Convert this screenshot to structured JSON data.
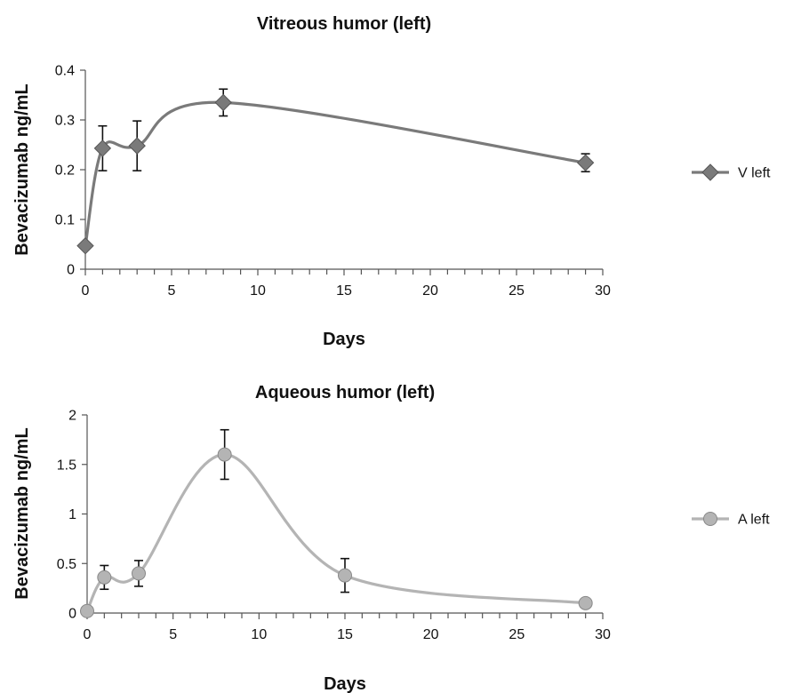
{
  "chart_data": [
    {
      "type": "line",
      "title": "Vitreous humor (left)",
      "xlabel": "Days",
      "ylabel": "Bevacizumab ng/mL",
      "xlim": [
        0,
        30
      ],
      "ylim": [
        0,
        0.4
      ],
      "xticks": [
        0,
        5,
        10,
        15,
        20,
        25,
        30
      ],
      "xtick_labels": [
        "0",
        "5",
        "10",
        "15",
        "20",
        "25",
        "30"
      ],
      "yticks": [
        0,
        0.1,
        0.2,
        0.3,
        0.4
      ],
      "ytick_labels": [
        "0",
        "0.1",
        "0.2",
        "0.3",
        "0.4"
      ],
      "legend_position": "right",
      "grid": false,
      "series": [
        {
          "name": "V left",
          "marker": "diamond",
          "color": "#7a7a7a",
          "x": [
            0,
            1,
            3,
            8,
            29
          ],
          "y": [
            0.047,
            0.243,
            0.248,
            0.335,
            0.214
          ],
          "error": [
            0.005,
            0.045,
            0.05,
            0.027,
            0.018
          ]
        }
      ]
    },
    {
      "type": "line",
      "title": "Aqueous humor (left)",
      "xlabel": "Days",
      "ylabel": "Bevacizumab ng/mL",
      "xlim": [
        0,
        30
      ],
      "ylim": [
        0,
        2
      ],
      "xticks": [
        0,
        5,
        10,
        15,
        20,
        25,
        30
      ],
      "xtick_labels": [
        "0",
        "5",
        "10",
        "15",
        "20",
        "25",
        "30"
      ],
      "yticks": [
        0,
        0.5,
        1,
        1.5,
        2
      ],
      "ytick_labels": [
        "0",
        "0.5",
        "1",
        "1.5",
        "2"
      ],
      "legend_position": "right",
      "grid": false,
      "series": [
        {
          "name": "A left",
          "marker": "circle",
          "color": "#b4b4b4",
          "x": [
            0,
            1,
            3,
            8,
            15,
            29
          ],
          "y": [
            0.02,
            0.36,
            0.4,
            1.6,
            0.38,
            0.1
          ],
          "error": [
            0,
            0.12,
            0.13,
            0.25,
            0.17,
            0
          ]
        }
      ]
    }
  ]
}
